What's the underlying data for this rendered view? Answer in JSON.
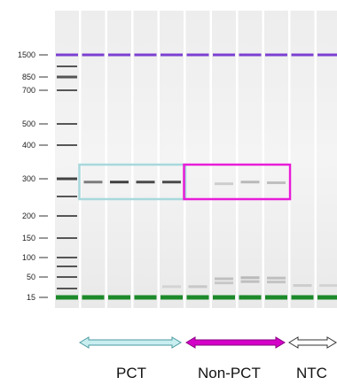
{
  "ladder_markers": [
    1500,
    850,
    700,
    500,
    400,
    300,
    200,
    150,
    100,
    50,
    15
  ],
  "ladder_bands": [
    1500,
    1000,
    850,
    700,
    500,
    400,
    300,
    250,
    200,
    150,
    100,
    75,
    50,
    25,
    15
  ],
  "lanes": {
    "count": 11,
    "upper_marker_bp": 1500,
    "lower_marker_bp": 15,
    "upper_marker_color": "#7b3fd1",
    "lower_marker_color": "#1c8a2a"
  },
  "sample_bands": [
    {
      "lane": 1,
      "bp": 290,
      "intensity": 0.55
    },
    {
      "lane": 2,
      "bp": 290,
      "intensity": 0.85
    },
    {
      "lane": 3,
      "bp": 290,
      "intensity": 0.8
    },
    {
      "lane": 4,
      "bp": 290,
      "intensity": 0.8
    },
    {
      "lane": 6,
      "bp": 285,
      "intensity": 0.15
    },
    {
      "lane": 7,
      "bp": 290,
      "intensity": 0.25
    },
    {
      "lane": 8,
      "bp": 288,
      "intensity": 0.22
    },
    {
      "lane": 4,
      "bp": 28,
      "intensity": 0.12
    },
    {
      "lane": 5,
      "bp": 28,
      "intensity": 0.18
    },
    {
      "lane": 6,
      "bp": 45,
      "intensity": 0.22
    },
    {
      "lane": 6,
      "bp": 35,
      "intensity": 0.18
    },
    {
      "lane": 7,
      "bp": 48,
      "intensity": 0.25
    },
    {
      "lane": 7,
      "bp": 38,
      "intensity": 0.22
    },
    {
      "lane": 8,
      "bp": 47,
      "intensity": 0.22
    },
    {
      "lane": 8,
      "bp": 37,
      "intensity": 0.2
    },
    {
      "lane": 9,
      "bp": 30,
      "intensity": 0.15
    },
    {
      "lane": 10,
      "bp": 30,
      "intensity": 0.12
    }
  ],
  "groups": [
    {
      "label": "PCT",
      "first_lane": 1,
      "last_lane": 4,
      "box_color": "#a8d8dc",
      "arrow_fill": "#c8eef0",
      "arrow_stroke": "#4a9aa0"
    },
    {
      "label": "Non-PCT",
      "first_lane": 5,
      "last_lane": 8,
      "box_color": "#e81cd8",
      "arrow_fill": "#d400c8",
      "arrow_stroke": "#880080"
    },
    {
      "label": "NTC",
      "first_lane": 9,
      "last_lane": 10,
      "box_color": "",
      "arrow_fill": "#ffffff",
      "arrow_stroke": "#333333"
    }
  ],
  "labels": {
    "pct": "PCT",
    "non_pct": "Non-PCT",
    "ntc": "NTC"
  }
}
